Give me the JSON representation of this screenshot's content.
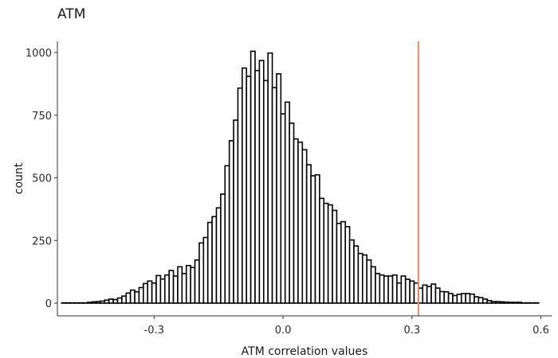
{
  "chart_data": {
    "type": "bar",
    "title": "ATM",
    "xlabel": "ATM correlation values",
    "ylabel": "count",
    "xlim": [
      -0.525,
      0.625
    ],
    "ylim": [
      0,
      1000
    ],
    "x_ticks": [
      -0.3,
      0.0,
      0.3,
      0.6
    ],
    "x_tick_labels": [
      "-0.3",
      "0.0",
      "0.3",
      "0.6"
    ],
    "y_ticks": [
      0,
      250,
      500,
      750,
      1000
    ],
    "y_tick_labels": [
      "0",
      "250",
      "500",
      "750",
      "1000"
    ],
    "grid": false,
    "bin_width": 0.01,
    "bin_start": -0.515,
    "counts": [
      1,
      1,
      1,
      1,
      1,
      1,
      3,
      5,
      6,
      8,
      12,
      16,
      14,
      20,
      28,
      40,
      52,
      45,
      62,
      78,
      88,
      80,
      110,
      96,
      112,
      130,
      108,
      145,
      118,
      150,
      142,
      172,
      240,
      262,
      322,
      345,
      380,
      435,
      548,
      648,
      730,
      858,
      938,
      905,
      1005,
      928,
      968,
      888,
      998,
      860,
      915,
      755,
      802,
      718,
      655,
      642,
      612,
      552,
      508,
      512,
      418,
      398,
      392,
      370,
      318,
      325,
      305,
      252,
      228,
      198,
      192,
      172,
      145,
      118,
      112,
      108,
      108,
      112,
      80,
      108,
      95,
      88,
      80,
      60,
      72,
      66,
      76,
      60,
      46,
      45,
      38,
      30,
      35,
      38,
      38,
      36,
      25,
      22,
      16,
      10,
      6,
      6,
      5,
      4,
      3,
      3,
      3,
      1,
      1,
      1,
      1
    ],
    "vline_x": 0.315,
    "vline_color": "#f08a5d",
    "bar_fill": "#ffffff",
    "bar_stroke": "#000000"
  }
}
